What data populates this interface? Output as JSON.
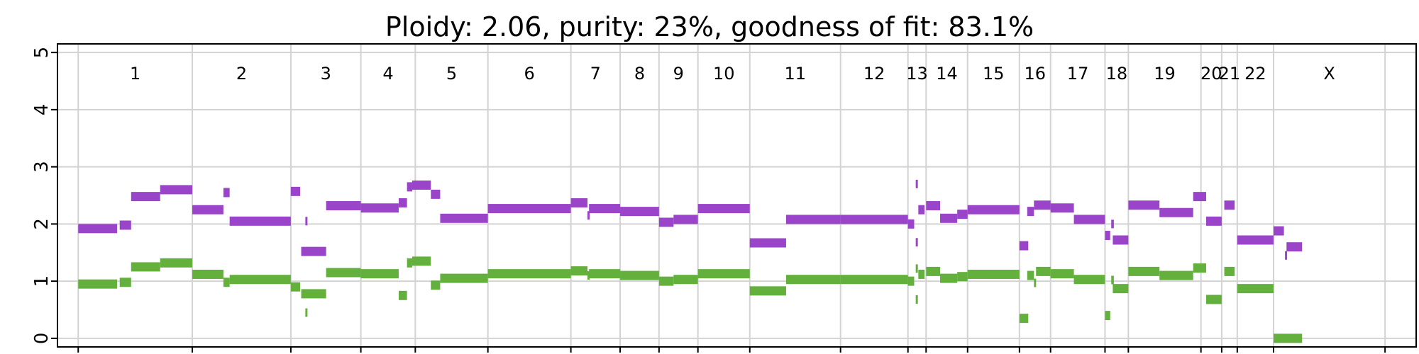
{
  "chart_data": {
    "type": "scatter",
    "title": "Ploidy: 2.06, purity: 23%, goodness of fit: 83.1%",
    "xlabel": "",
    "ylabel": "",
    "ylim": [
      -0.15,
      5.15
    ],
    "yticks": [
      "0",
      "1",
      "2",
      "3",
      "4",
      "5"
    ],
    "xlim": [
      -0.4,
      25.8
    ],
    "grid": true,
    "chromosomes": [
      {
        "label": "1",
        "start": 0.0,
        "end": 2.2
      },
      {
        "label": "2",
        "start": 2.2,
        "end": 4.1
      },
      {
        "label": "3",
        "start": 4.1,
        "end": 5.45
      },
      {
        "label": "4",
        "start": 5.45,
        "end": 6.5
      },
      {
        "label": "5",
        "start": 6.5,
        "end": 7.9
      },
      {
        "label": "6",
        "start": 7.9,
        "end": 9.5
      },
      {
        "label": "7",
        "start": 9.5,
        "end": 10.45
      },
      {
        "label": "8",
        "start": 10.45,
        "end": 11.2
      },
      {
        "label": "9",
        "start": 11.2,
        "end": 11.95
      },
      {
        "label": "10",
        "start": 11.95,
        "end": 12.95
      },
      {
        "label": "11",
        "start": 12.95,
        "end": 14.7
      },
      {
        "label": "12",
        "start": 14.7,
        "end": 16.0
      },
      {
        "label": "13",
        "start": 16.0,
        "end": 16.35
      },
      {
        "label": "14",
        "start": 16.35,
        "end": 17.15
      },
      {
        "label": "15",
        "start": 17.15,
        "end": 18.15
      },
      {
        "label": "16",
        "start": 18.15,
        "end": 18.75
      },
      {
        "label": "17",
        "start": 18.75,
        "end": 19.8
      },
      {
        "label": "18",
        "start": 19.8,
        "end": 20.25
      },
      {
        "label": "19",
        "start": 20.25,
        "end": 21.65
      },
      {
        "label": "20",
        "start": 21.65,
        "end": 22.05
      },
      {
        "label": "21",
        "start": 22.05,
        "end": 22.35
      },
      {
        "label": "22",
        "start": 22.35,
        "end": 23.05
      },
      {
        "label": "X",
        "start": 23.05,
        "end": 25.2
      }
    ],
    "colors": {
      "major": "#9a45c9",
      "minor": "#63b03c",
      "grid": "#d3d3d3",
      "axis": "#000000"
    },
    "series": [
      {
        "color_key": "major",
        "segments": [
          [
            0.0,
            0.75,
            1.92
          ],
          [
            0.8,
            1.02,
            1.98
          ],
          [
            1.02,
            1.58,
            2.48
          ],
          [
            1.58,
            2.2,
            2.6
          ],
          [
            2.2,
            2.8,
            2.25
          ],
          [
            2.8,
            2.92,
            2.55
          ],
          [
            2.92,
            4.1,
            2.05
          ],
          [
            4.1,
            4.28,
            2.57
          ],
          [
            4.38,
            4.4,
            2.05
          ],
          [
            4.3,
            4.78,
            1.52
          ],
          [
            4.78,
            5.45,
            2.32
          ],
          [
            5.45,
            6.18,
            2.28
          ],
          [
            6.18,
            6.34,
            2.37
          ],
          [
            6.34,
            6.44,
            2.65
          ],
          [
            6.44,
            6.8,
            2.68
          ],
          [
            6.8,
            6.98,
            2.52
          ],
          [
            6.98,
            7.9,
            2.1
          ],
          [
            7.9,
            9.5,
            2.27
          ],
          [
            9.5,
            9.82,
            2.37
          ],
          [
            9.82,
            9.85,
            2.15
          ],
          [
            9.85,
            10.45,
            2.27
          ],
          [
            10.45,
            11.2,
            2.22
          ],
          [
            11.2,
            11.48,
            2.03
          ],
          [
            11.48,
            11.95,
            2.08
          ],
          [
            11.95,
            12.95,
            2.27
          ],
          [
            12.95,
            13.65,
            1.67
          ],
          [
            13.65,
            14.7,
            2.08
          ],
          [
            14.7,
            16.0,
            2.08
          ],
          [
            16.0,
            16.12,
            2.0
          ],
          [
            16.15,
            16.17,
            2.7
          ],
          [
            16.15,
            16.17,
            1.68
          ],
          [
            16.2,
            16.32,
            2.25
          ],
          [
            16.35,
            16.62,
            2.32
          ],
          [
            16.62,
            16.95,
            2.1
          ],
          [
            16.95,
            17.15,
            2.17
          ],
          [
            17.15,
            18.15,
            2.25
          ],
          [
            18.15,
            18.32,
            1.62
          ],
          [
            18.3,
            18.43,
            2.22
          ],
          [
            18.43,
            18.75,
            2.33
          ],
          [
            18.75,
            19.2,
            2.28
          ],
          [
            19.2,
            19.8,
            2.08
          ],
          [
            19.8,
            19.9,
            1.8
          ],
          [
            19.92,
            19.97,
            2.0
          ],
          [
            19.95,
            20.25,
            1.72
          ],
          [
            20.25,
            20.85,
            2.33
          ],
          [
            20.85,
            21.5,
            2.2
          ],
          [
            21.5,
            21.75,
            2.48
          ],
          [
            21.75,
            22.05,
            2.05
          ],
          [
            22.1,
            22.3,
            2.33
          ],
          [
            22.35,
            23.05,
            1.72
          ],
          [
            23.05,
            23.25,
            1.88
          ],
          [
            23.27,
            23.29,
            1.45
          ],
          [
            23.3,
            23.6,
            1.6
          ]
        ]
      },
      {
        "color_key": "minor",
        "segments": [
          [
            0.0,
            0.75,
            0.95
          ],
          [
            0.8,
            1.02,
            0.98
          ],
          [
            1.02,
            1.58,
            1.25
          ],
          [
            1.58,
            2.2,
            1.32
          ],
          [
            2.2,
            2.8,
            1.12
          ],
          [
            2.8,
            2.92,
            0.98
          ],
          [
            2.92,
            4.1,
            1.03
          ],
          [
            4.1,
            4.28,
            0.9
          ],
          [
            4.38,
            4.4,
            0.45
          ],
          [
            4.3,
            4.78,
            0.78
          ],
          [
            4.78,
            5.45,
            1.15
          ],
          [
            5.45,
            6.18,
            1.13
          ],
          [
            6.18,
            6.34,
            0.75
          ],
          [
            6.34,
            6.44,
            1.32
          ],
          [
            6.44,
            6.8,
            1.35
          ],
          [
            6.8,
            6.98,
            0.93
          ],
          [
            6.98,
            7.9,
            1.05
          ],
          [
            7.9,
            9.5,
            1.13
          ],
          [
            9.5,
            9.82,
            1.18
          ],
          [
            9.82,
            9.85,
            1.1
          ],
          [
            9.85,
            10.45,
            1.13
          ],
          [
            10.45,
            11.2,
            1.1
          ],
          [
            11.2,
            11.48,
            1.0
          ],
          [
            11.48,
            11.95,
            1.03
          ],
          [
            11.95,
            12.95,
            1.13
          ],
          [
            12.95,
            13.65,
            0.83
          ],
          [
            13.65,
            14.7,
            1.03
          ],
          [
            14.7,
            16.0,
            1.03
          ],
          [
            16.0,
            16.12,
            1.0
          ],
          [
            16.15,
            16.17,
            1.22
          ],
          [
            16.15,
            16.17,
            0.68
          ],
          [
            16.2,
            16.32,
            1.12
          ],
          [
            16.35,
            16.62,
            1.17
          ],
          [
            16.62,
            16.95,
            1.05
          ],
          [
            16.95,
            17.15,
            1.08
          ],
          [
            17.15,
            18.15,
            1.12
          ],
          [
            18.15,
            18.32,
            0.35
          ],
          [
            18.3,
            18.43,
            1.1
          ],
          [
            18.43,
            18.47,
            0.97
          ],
          [
            18.47,
            18.75,
            1.17
          ],
          [
            18.75,
            19.2,
            1.13
          ],
          [
            19.2,
            19.8,
            1.03
          ],
          [
            19.8,
            19.9,
            0.4
          ],
          [
            19.92,
            19.97,
            1.02
          ],
          [
            19.95,
            20.25,
            0.87
          ],
          [
            20.25,
            20.85,
            1.17
          ],
          [
            20.85,
            21.5,
            1.1
          ],
          [
            21.5,
            21.75,
            1.23
          ],
          [
            21.75,
            22.05,
            0.68
          ],
          [
            22.1,
            22.3,
            1.17
          ],
          [
            22.35,
            23.05,
            0.87
          ],
          [
            23.05,
            23.6,
            0.0
          ]
        ]
      }
    ]
  }
}
